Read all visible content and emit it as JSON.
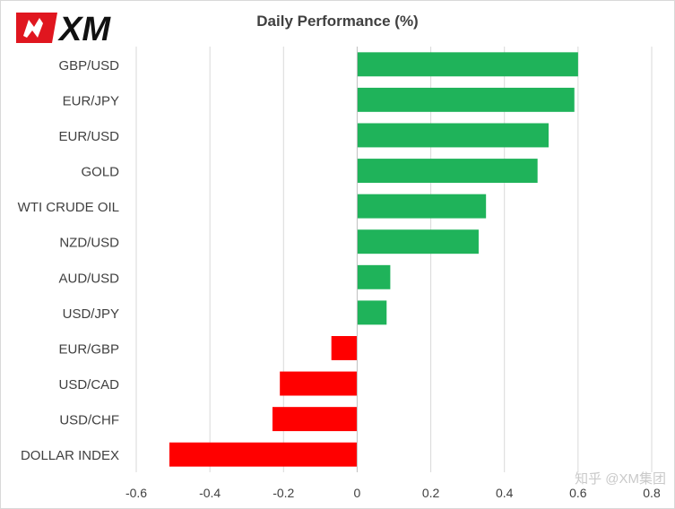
{
  "brand": {
    "logo_text": "XM",
    "logo_color": "#e0161f",
    "watermark": "知乎 @XM集团"
  },
  "chart_data": {
    "type": "bar",
    "orientation": "horizontal",
    "title": "Daily Performance  (%)",
    "categories": [
      "GBP/USD",
      "EUR/JPY",
      "EUR/USD",
      "GOLD",
      "WTI CRUDE OIL",
      "NZD/USD",
      "AUD/USD",
      "USD/JPY",
      "EUR/GBP",
      "USD/CAD",
      "USD/CHF",
      "DOLLAR INDEX"
    ],
    "values": [
      0.6,
      0.59,
      0.52,
      0.49,
      0.35,
      0.33,
      0.09,
      0.08,
      -0.07,
      -0.21,
      -0.23,
      -0.51
    ],
    "xlim": [
      -0.6,
      0.8
    ],
    "xticks": [
      -0.6,
      -0.4,
      -0.2,
      0,
      0.2,
      0.4,
      0.6,
      0.8
    ],
    "xtick_labels": [
      "-0.6",
      "-0.4",
      "-0.2",
      "0",
      "0.2",
      "0.4",
      "0.6",
      "0.8"
    ],
    "grid": true,
    "positive_color": "#1fb35a",
    "negative_color": "#ff0000",
    "xlabel": "",
    "ylabel": ""
  }
}
